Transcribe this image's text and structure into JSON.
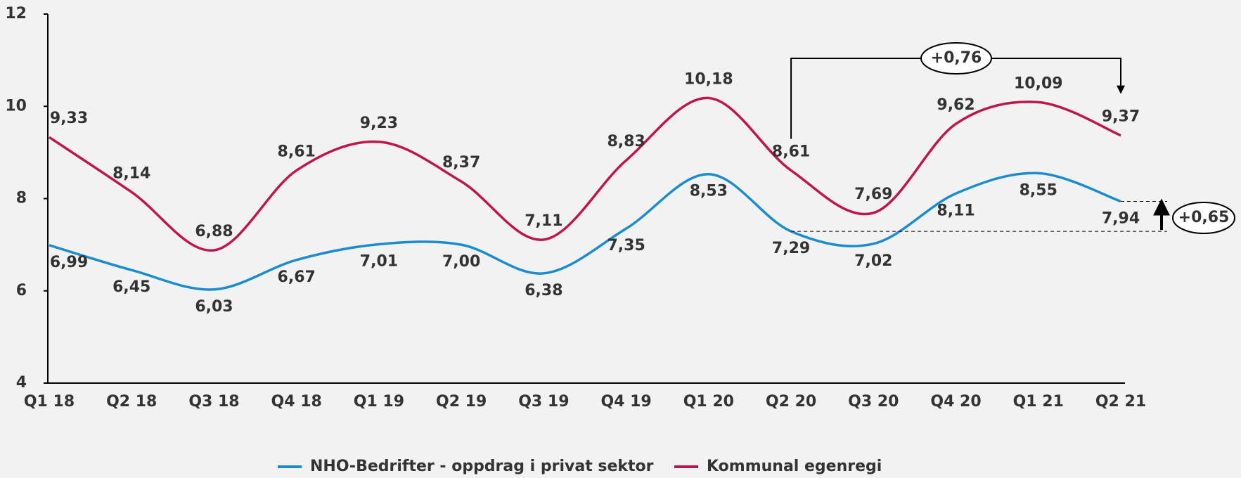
{
  "chart_data": {
    "type": "line",
    "categories": [
      "Q1 18",
      "Q2 18",
      "Q3 18",
      "Q4 18",
      "Q1 19",
      "Q2 19",
      "Q3 19",
      "Q4 19",
      "Q1 20",
      "Q2 20",
      "Q3 20",
      "Q4 20",
      "Q1 21",
      "Q2 21"
    ],
    "series": [
      {
        "name": "NHO-Bedrifter - oppdrag i privat sektor",
        "color": "#1b8ccc",
        "values": [
          6.99,
          6.45,
          6.03,
          6.67,
          7.01,
          7.0,
          6.38,
          7.35,
          8.53,
          7.29,
          7.02,
          8.11,
          8.55,
          7.94
        ],
        "value_labels": [
          "6,99",
          "6,45",
          "6,03",
          "6,67",
          "7,01",
          "7,00",
          "6,38",
          "7,35",
          "8,53",
          "7,29",
          "7,02",
          "8,11",
          "8,55",
          "7,94"
        ]
      },
      {
        "name": "Kommunal egenregi",
        "color": "#c0154a",
        "values": [
          9.33,
          8.14,
          6.88,
          8.61,
          9.23,
          8.37,
          7.11,
          8.83,
          10.18,
          8.61,
          7.69,
          9.62,
          10.09,
          9.37
        ],
        "value_labels": [
          "9,33",
          "8,14",
          "6,88",
          "8,61",
          "9,23",
          "8,37",
          "7,11",
          "8,83",
          "10,18",
          "8,61",
          "7,69",
          "9,62",
          "10,09",
          "9,37"
        ]
      }
    ],
    "ylim": [
      4,
      12
    ],
    "yticks": [
      4,
      6,
      8,
      10,
      12
    ],
    "annotations": [
      "+0,76",
      "+0,65"
    ],
    "legend": "bottom"
  }
}
